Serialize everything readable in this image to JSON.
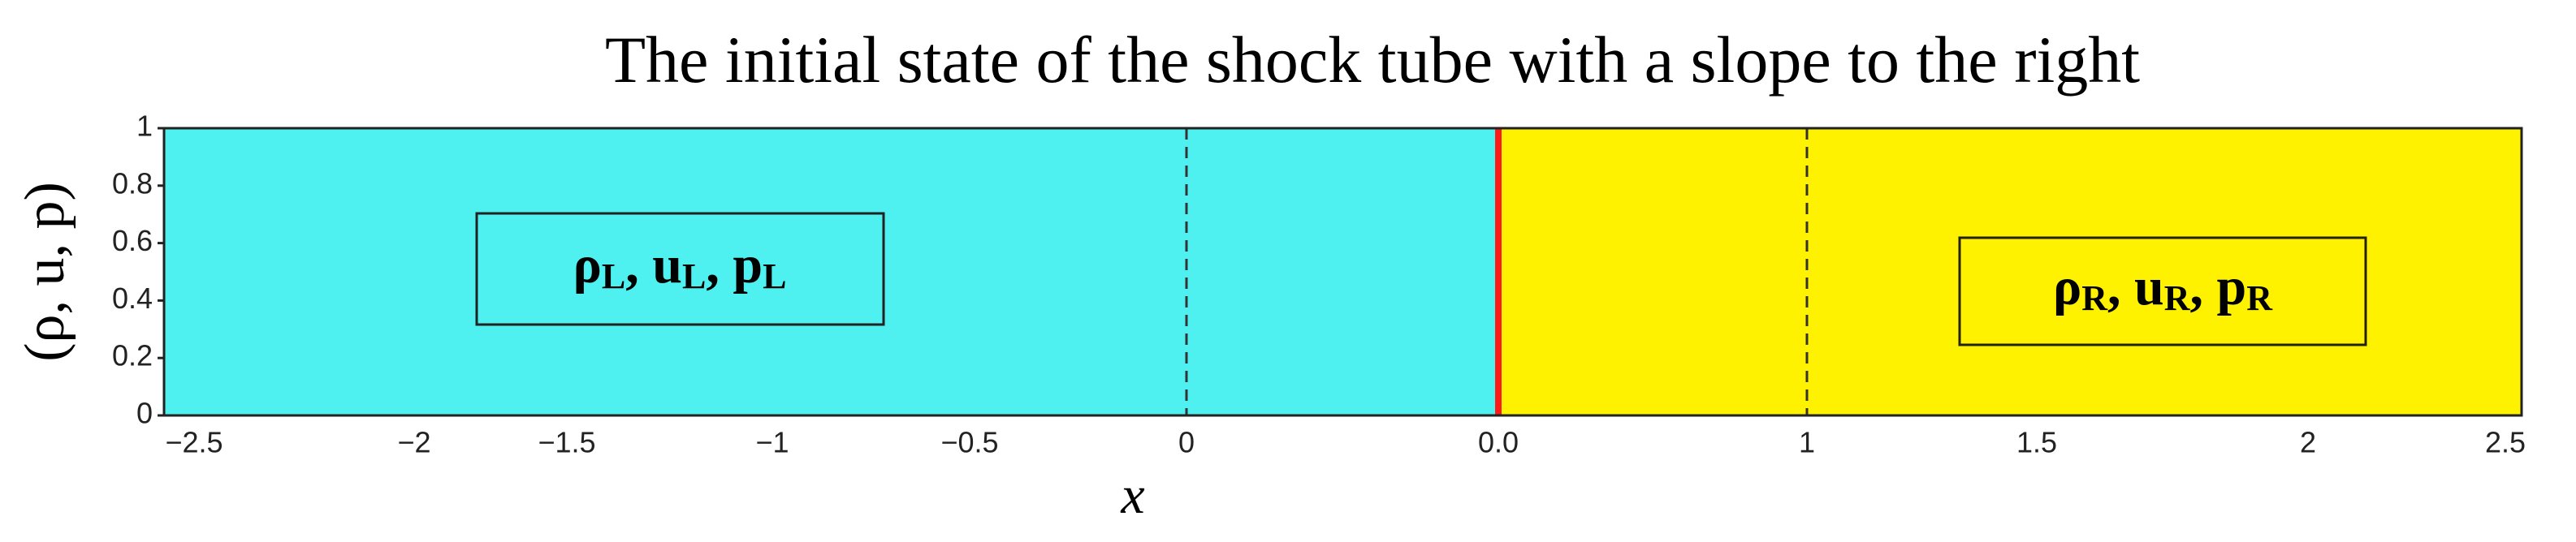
{
  "title": "The initial state of the shock tube with a slope to the right",
  "y_axis": {
    "label": "(ρ, u, p)",
    "ticks": [
      0,
      0.2,
      0.4,
      0.6,
      0.8,
      1
    ]
  },
  "x_axis": {
    "label": "x",
    "ticks": [
      "−2.5",
      "−2",
      "−1.5",
      "−1",
      "−0.5",
      "0",
      "0.0",
      "1",
      "1.5",
      "2",
      "2.5"
    ]
  },
  "left_state": [
    {
      "symbol": "ρ",
      "subscript": "L",
      "separator": ", "
    },
    {
      "symbol": "u",
      "subscript": "L",
      "separator": ", "
    },
    {
      "symbol": "p",
      "subscript": "L"
    }
  ],
  "right_state": [
    {
      "symbol": "ρ",
      "subscript": "R",
      "separator": ", "
    },
    {
      "symbol": "u",
      "subscript": "R",
      "separator": ", "
    },
    {
      "symbol": "p",
      "subscript": "R"
    }
  ]
}
